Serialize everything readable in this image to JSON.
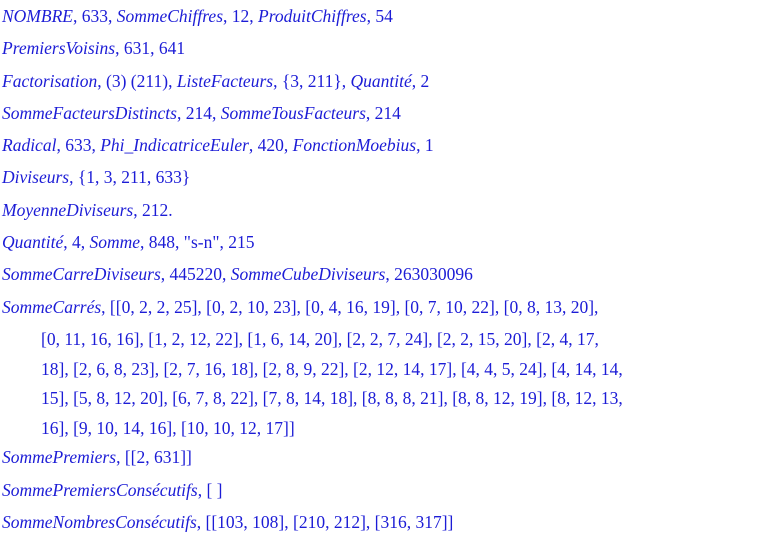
{
  "lines": [
    [
      {
        "t": "NOMBRE",
        "i": true
      },
      {
        "t": ", 633, "
      },
      {
        "t": "SommeChiffres",
        "i": true
      },
      {
        "t": ", 12, "
      },
      {
        "t": "ProduitChiffres",
        "i": true
      },
      {
        "t": ", 54"
      }
    ],
    [
      {
        "t": "PremiersVoisins",
        "i": true
      },
      {
        "t": ", 631, 641"
      }
    ],
    [
      {
        "t": "Factorisation",
        "i": true
      },
      {
        "t": ", (3) (211), "
      },
      {
        "t": "ListeFacteurs",
        "i": true
      },
      {
        "t": ", {3, 211}, "
      },
      {
        "t": "Quantité",
        "i": true
      },
      {
        "t": ", 2"
      }
    ],
    [
      {
        "t": "SommeFacteursDistincts",
        "i": true
      },
      {
        "t": ", 214, "
      },
      {
        "t": "SommeTousFacteurs",
        "i": true
      },
      {
        "t": ", 214"
      }
    ],
    [
      {
        "t": "Radical",
        "i": true
      },
      {
        "t": ", 633, "
      },
      {
        "t": "Phi_IndicatriceEuler",
        "i": true
      },
      {
        "t": ", 420, "
      },
      {
        "t": "FonctionMoebius",
        "i": true
      },
      {
        "t": ", 1"
      }
    ],
    [
      {
        "t": "Diviseurs",
        "i": true
      },
      {
        "t": ", {1, 3, 211, 633}"
      }
    ],
    [
      {
        "t": "MoyenneDiviseurs",
        "i": true
      },
      {
        "t": ", 212."
      }
    ],
    [
      {
        "t": "Quantité",
        "i": true
      },
      {
        "t": ", 4, "
      },
      {
        "t": "Somme",
        "i": true
      },
      {
        "t": ", 848, \"s-n\", 215"
      }
    ],
    [
      {
        "t": "SommeCarreDiviseurs",
        "i": true
      },
      {
        "t": ", 445220, "
      },
      {
        "t": "SommeCubeDiviseurs",
        "i": true
      },
      {
        "t": ", 263030096"
      }
    ],
    [
      {
        "t": "SommeCarrés",
        "i": true
      },
      {
        "t": ", [[0, 2, 2, 25], [0, 2, 10, 23], [0, 4, 16, 19], [0, 7, 10, 22], [0, 8, 13, 20],"
      }
    ],
    [
      {
        "t": "[0, 11, 16, 16], [1, 2, 12, 22], [1, 6, 14, 20], [2, 2, 7, 24], [2, 2, 15, 20], [2, 4, 17,",
        "c": true
      }
    ],
    [
      {
        "t": "18], [2, 6, 8, 23], [2, 7, 16, 18], [2, 8, 9, 22], [2, 12, 14, 17], [4, 4, 5, 24], [4, 14, 14,",
        "c": true
      }
    ],
    [
      {
        "t": "15], [5, 8, 12, 20], [6, 7, 8, 22], [7, 8, 14, 18], [8, 8, 8, 21], [8, 8, 12, 19], [8, 12, 13,",
        "c": true
      }
    ],
    [
      {
        "t": "16], [9, 10, 14, 16], [10, 10, 12, 17]]",
        "c": true
      }
    ],
    [
      {
        "t": "SommePremiers",
        "i": true
      },
      {
        "t": ", [[2, 631]]"
      }
    ],
    [
      {
        "t": "SommePremiersConsécutifs",
        "i": true
      },
      {
        "t": ", [ ]"
      }
    ],
    [
      {
        "t": "SommeNombresConsécutifs",
        "i": true
      },
      {
        "t": ", [[103, 108], [210, 212], [316, 317]]"
      }
    ]
  ],
  "colors": {
    "text": "#1c1cd6",
    "background": "#ffffff"
  }
}
